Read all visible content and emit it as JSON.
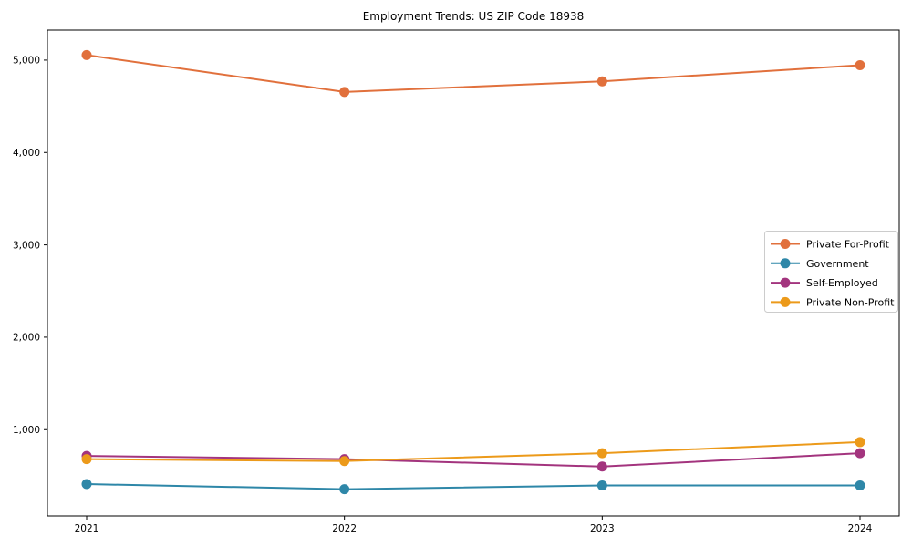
{
  "chart_data": {
    "type": "line",
    "title": "Employment Trends: US ZIP Code 18938",
    "categories": [
      "2021",
      "2022",
      "2023",
      "2024"
    ],
    "series": [
      {
        "name": "Private For-Profit",
        "color": "#e1703c",
        "values": [
          5055,
          4655,
          4770,
          4945
        ]
      },
      {
        "name": "Government",
        "color": "#2e87a8",
        "values": [
          410,
          355,
          395,
          395
        ]
      },
      {
        "name": "Self-Employed",
        "color": "#a3347e",
        "values": [
          715,
          680,
          600,
          745
        ]
      },
      {
        "name": "Private Non-Profit",
        "color": "#ec9a1a",
        "values": [
          680,
          660,
          745,
          865
        ]
      }
    ],
    "xlabel": "",
    "ylabel": "",
    "ylim": [
      65,
      5325
    ],
    "yticks": [
      1000,
      2000,
      3000,
      4000,
      5000
    ],
    "ytick_labels": [
      "1,000",
      "2,000",
      "3,000",
      "4,000",
      "5,000"
    ],
    "grid": false,
    "legend_position": "center-right",
    "marker": "circle",
    "axis_color": "#000000",
    "legend_border_color": "#cccccc",
    "background_color": "#ffffff"
  }
}
